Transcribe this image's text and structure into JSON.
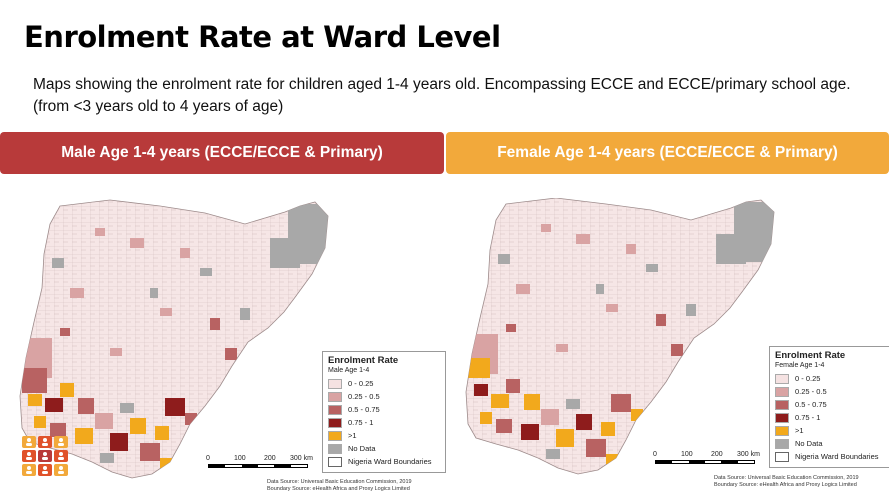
{
  "title": "Enrolment Rate at Ward Level",
  "subtitle": "Maps showing the enrolment rate for  children aged 1-4 years old. Encompassing ECCE and ECCE/primary school age. (from <3 years old to 4 years of age)",
  "colors": {
    "male_banner": "#b83a3a",
    "female_banner": "#f2a93b"
  },
  "maps": [
    {
      "banner": "Male Age 1-4 years (ECCE/ECCE & Primary)",
      "legend": {
        "title": "Enrolment Rate",
        "subtitle": "Male Age 1-4"
      }
    },
    {
      "banner": "Female Age 1-4 years (ECCE/ECCE & Primary)",
      "legend": {
        "title": "Enrolment Rate",
        "subtitle": "Female Age 1-4"
      }
    }
  ],
  "legend_items": [
    {
      "label": "0 - 0.25",
      "color": "#f5e2e2"
    },
    {
      "label": "0.25 - 0.5",
      "color": "#d9a3a3"
    },
    {
      "label": "0.5 - 0.75",
      "color": "#b86262"
    },
    {
      "label": "0.75 - 1",
      "color": "#8e1c1c"
    },
    {
      "label": ">1",
      "color": "#f2a91c"
    },
    {
      "label": "No Data",
      "color": "#a8a8a8"
    },
    {
      "label": "Nigeria Ward Boundaries",
      "color": "#ffffff"
    }
  ],
  "scale_ticks": [
    "0",
    "100",
    "200",
    "300 km"
  ],
  "source": {
    "data": "Data Source: Universal Basic Education Commission, 2019",
    "boundary": "Boundary Source: eHealth Africa and Proxy Logics Limited"
  }
}
